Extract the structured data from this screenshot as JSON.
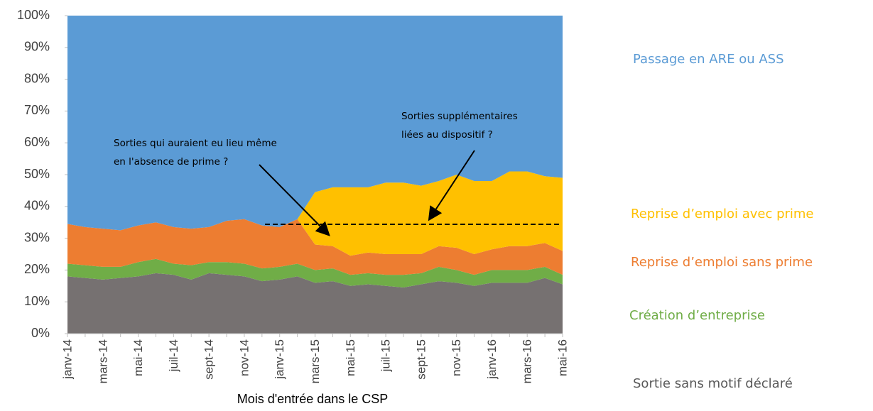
{
  "chart_data": {
    "type": "stacked_area",
    "x_label": "Mois d'entrée dans le CSP",
    "categories": [
      "janv-14",
      null,
      "mars-14",
      null,
      "mai-14",
      null,
      "juil-14",
      null,
      "sept-14",
      null,
      "nov-14",
      null,
      "janv-15",
      null,
      "mars-15",
      null,
      "mai-15",
      null,
      "juil-15",
      null,
      "sept-15",
      null,
      "nov-15",
      null,
      "janv-16",
      null,
      "mars-16",
      null,
      "mai-16"
    ],
    "series": [
      {
        "name": "Sortie sans motif déclaré",
        "color": "#767171",
        "values": [
          18,
          17.5,
          17,
          17.5,
          18,
          19,
          18.5,
          17,
          19,
          18.5,
          18,
          16.5,
          17,
          18,
          16,
          16.5,
          15,
          15.5,
          15,
          14.5,
          15.5,
          16.5,
          16,
          15,
          16,
          16,
          16,
          17.5,
          15.5
        ]
      },
      {
        "name": "Création d’entreprise",
        "color": "#70ad47",
        "values": [
          4,
          4,
          4,
          3.5,
          4.5,
          4.5,
          3.5,
          4.5,
          3.5,
          4,
          4,
          4,
          4,
          4,
          4,
          4,
          3.5,
          3.5,
          3.5,
          4,
          3.5,
          4.5,
          4,
          3.5,
          4,
          4,
          4,
          3.5,
          3
        ]
      },
      {
        "name": "Reprise d’emploi sans prime",
        "color": "#ed7d31",
        "values": [
          12.5,
          12,
          12,
          11.5,
          11.5,
          11.5,
          11.5,
          11.5,
          11,
          13,
          14,
          13.5,
          12.5,
          14,
          8,
          7,
          6,
          6.5,
          6.5,
          6.5,
          6,
          6.5,
          7,
          6.5,
          6.5,
          7.5,
          7.5,
          7.5,
          7.5
        ]
      },
      {
        "name": "Reprise d’emploi avec prime",
        "color": "#ffc000",
        "values": [
          0,
          0,
          0,
          0,
          0,
          0,
          0,
          0,
          0,
          0,
          0,
          0,
          0,
          0,
          16.5,
          18.5,
          21.5,
          20.5,
          22.5,
          22.5,
          21.5,
          20.5,
          23,
          23,
          21.5,
          23.5,
          23.5,
          21,
          23
        ]
      },
      {
        "name": "Passage en ARE ou ASS",
        "color": "#5b9bd5",
        "values": [
          65.5,
          66.5,
          67,
          67.5,
          66,
          65,
          66.5,
          67,
          66.5,
          64.5,
          64,
          66,
          66.5,
          64,
          55.5,
          54,
          54,
          54,
          52.5,
          52.5,
          53.5,
          52,
          50,
          52,
          52,
          49,
          49,
          50.5,
          51
        ]
      }
    ],
    "ylim": [
      0,
      100
    ],
    "yticks": [
      {
        "value": 0,
        "label": "0%"
      },
      {
        "value": 10,
        "label": "10%"
      },
      {
        "value": 20,
        "label": "20%"
      },
      {
        "value": 30,
        "label": "30%"
      },
      {
        "value": 40,
        "label": "40%"
      },
      {
        "value": 50,
        "label": "50%"
      },
      {
        "value": 60,
        "label": "60%"
      },
      {
        "value": 70,
        "label": "70%"
      },
      {
        "value": 80,
        "label": "80%"
      },
      {
        "value": 90,
        "label": "90%"
      },
      {
        "value": 100,
        "label": "100%"
      }
    ],
    "annotations": [
      {
        "lines": [
          "Sorties qui auraient eu lieu même",
          "en l'absence de prime ?"
        ]
      },
      {
        "lines": [
          "Sorties supplémentaires",
          "liées au dispositif ?"
        ]
      }
    ]
  }
}
